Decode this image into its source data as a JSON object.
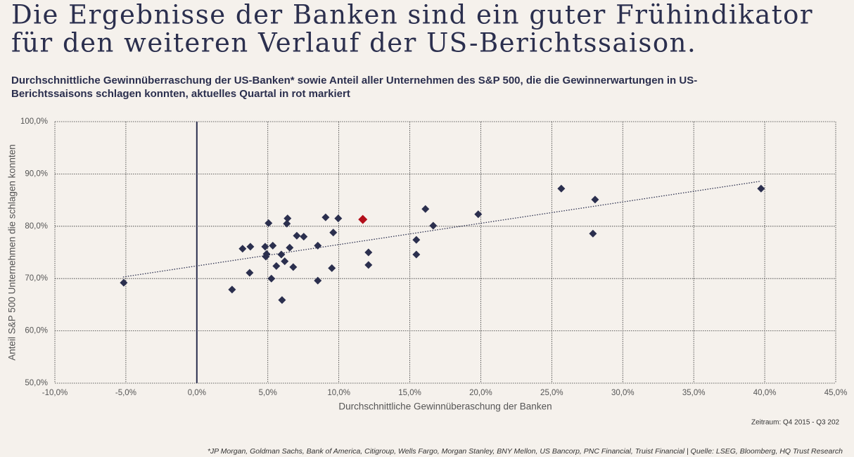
{
  "chart_data": {
    "type": "scatter",
    "title": [
      "Die Ergebnisse der Banken sind ein guter Frühindikator",
      "für den weiteren Verlauf der US-Berichtssaison."
    ],
    "subtitle": [
      "Durchschnittliche Gewinnüberraschung der US-Banken* sowie Anteil aller Unternehmen des S&P 500, die die Gewinnerwartungen in US-",
      "Berichtssaisons schlagen konnten, aktuelles Quartal in rot markiert"
    ],
    "x_label": "Durchschnittliche Gewinnüberaschung der Banken",
    "y_label": "Anteil S&P 500 Unternehmen die schlagen konnten",
    "period_note": "Zeitraum: Q4 2015 - Q3 202",
    "footnote": "*JP Morgan, Goldman Sachs, Bank of America, Citigroup, Wells Fargo, Morgan Stanley, BNY Mellon, US Bancorp, PNC Financial, Truist Financial | Quelle: LSEG, Bloomberg, HQ Trust Research",
    "xlim": [
      -10,
      45
    ],
    "ylim": [
      50,
      100
    ],
    "xticks": [
      {
        "value": -10,
        "label": "-10,0%"
      },
      {
        "value": -5,
        "label": "-5,0%"
      },
      {
        "value": 0,
        "label": "0,0%"
      },
      {
        "value": 5,
        "label": "5,0%"
      },
      {
        "value": 10,
        "label": "10,0%"
      },
      {
        "value": 15,
        "label": "15,0%"
      },
      {
        "value": 20,
        "label": "20,0%"
      },
      {
        "value": 25,
        "label": "25,0%"
      },
      {
        "value": 30,
        "label": "30,0%"
      },
      {
        "value": 35,
        "label": "35,0%"
      },
      {
        "value": 40,
        "label": "40,0%"
      },
      {
        "value": 45,
        "label": "45,0%"
      }
    ],
    "yticks": [
      {
        "value": 50,
        "label": "50,0%"
      },
      {
        "value": 60,
        "label": "60,0%"
      },
      {
        "value": 70,
        "label": "70,0%"
      },
      {
        "value": 80,
        "label": "80,0%"
      },
      {
        "value": 90,
        "label": "90,0%"
      },
      {
        "value": 100,
        "label": "100,0%"
      }
    ],
    "grid": true,
    "series": [
      {
        "color": "#2b2f4e",
        "marker": "diamond",
        "x": [
          -5.15,
          2.48,
          3.22,
          3.77,
          3.72,
          4.81,
          4.86,
          4.91,
          5.05,
          5.25,
          5.35,
          5.6,
          5.95,
          6.0,
          6.19,
          6.34,
          6.39,
          6.54,
          6.79,
          7.04,
          7.53,
          8.52,
          8.52,
          9.07,
          9.51,
          9.61,
          9.96,
          12.09,
          12.09,
          15.46,
          15.46,
          16.1,
          16.65,
          19.82,
          25.67,
          27.9,
          28.05,
          39.74
        ],
        "values": [
          69.2,
          67.9,
          75.7,
          76.1,
          71.1,
          76.1,
          74.2,
          74.7,
          80.6,
          70.0,
          76.3,
          72.4,
          74.6,
          65.9,
          73.3,
          80.5,
          81.5,
          75.9,
          72.2,
          78.2,
          78.0,
          76.3,
          69.6,
          81.7,
          72.0,
          78.8,
          81.5,
          75.0,
          72.6,
          77.4,
          74.6,
          83.3,
          80.1,
          82.3,
          87.2,
          78.6,
          85.1,
          87.2
        ]
      },
      {
        "color": "#b30f1b",
        "marker": "diamond",
        "x": [
          11.69
        ],
        "values": [
          81.3
        ]
      }
    ],
    "trendline": {
      "color": "#2b2f4e",
      "x": [
        -5.2,
        39.7
      ],
      "values": [
        70.3,
        88.6
      ]
    }
  }
}
